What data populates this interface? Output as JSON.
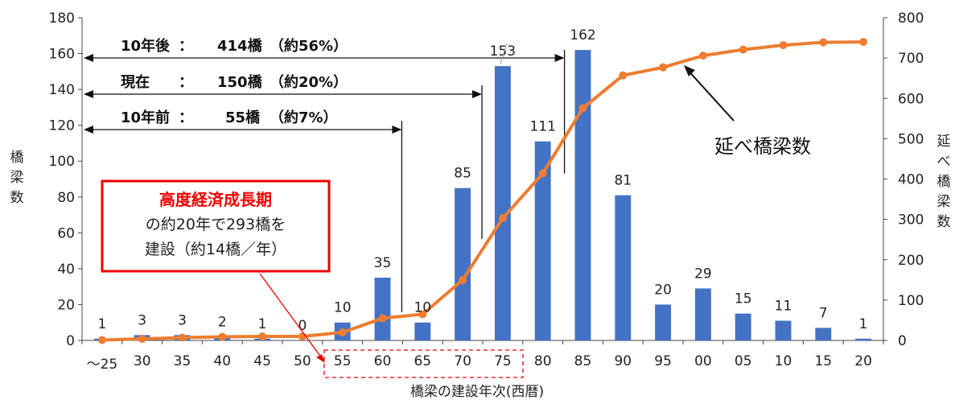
{
  "chart_data": {
    "type": "bar",
    "categories": [
      "～25",
      "30",
      "35",
      "40",
      "45",
      "50",
      "55",
      "60",
      "65",
      "70",
      "75",
      "80",
      "85",
      "90",
      "95",
      "00",
      "05",
      "10",
      "15",
      "20"
    ],
    "series": [
      {
        "values": [
          1,
          3,
          3,
          2,
          1,
          0,
          10,
          35,
          10,
          85,
          153,
          111,
          162,
          81,
          20,
          29,
          15,
          11,
          7,
          1
        ],
        "color": "#4472c4",
        "axis": "left"
      },
      {
        "name": "延べ橋梁数",
        "type": "line",
        "axis": "right",
        "color": "#ed7d31",
        "values": [
          1,
          4,
          7,
          9,
          10,
          10,
          20,
          55,
          65,
          150,
          303,
          414,
          576,
          657,
          677,
          706,
          721,
          732,
          739,
          740
        ]
      }
    ],
    "xlabel": "橋梁の建設年次(西暦)",
    "ylabel": "橋梁数",
    "y2label": "延べ橋梁数",
    "ylim": [
      0,
      180
    ],
    "y2lim": [
      0,
      800
    ],
    "yticks": [
      0,
      20,
      40,
      60,
      80,
      100,
      120,
      140,
      160,
      180
    ],
    "y2ticks": [
      0,
      100,
      200,
      300,
      400,
      500,
      600,
      700,
      800
    ],
    "grid": false,
    "annotations": [
      {
        "label": "10年後",
        "sep": "：",
        "value": "414橋",
        "pct": "（約56%）"
      },
      {
        "label": "現在",
        "sep": "：",
        "value": "150橋",
        "pct": "（約20%）"
      },
      {
        "label": "10年前",
        "sep": "：",
        "value": "55橋",
        "pct": "（約7%）"
      }
    ],
    "callout": {
      "title": "高度経済成長期",
      "line1": "の約20年で293橋を",
      "line2": "建設（約14橋／年）"
    }
  }
}
